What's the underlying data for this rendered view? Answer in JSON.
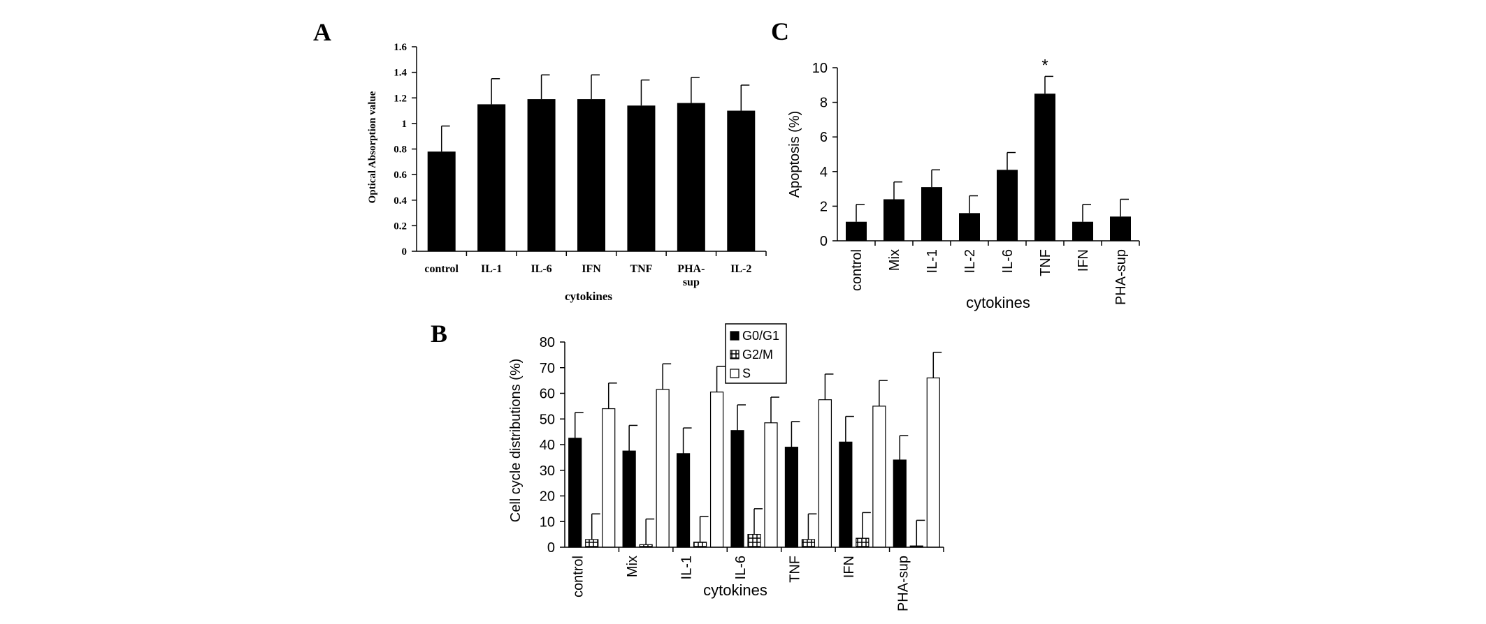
{
  "chart_data": [
    {
      "panel_label": "A",
      "type": "bar",
      "categories": [
        "control",
        "IL-1",
        "IL-6",
        "IFN",
        "TNF",
        "PHA-\nsup",
        "IL-2"
      ],
      "values": [
        0.78,
        1.15,
        1.19,
        1.19,
        1.14,
        1.16,
        1.1
      ],
      "errors": [
        0.2,
        0.2,
        0.19,
        0.19,
        0.2,
        0.2,
        0.2
      ],
      "xlabel": "cytokines",
      "ylabel": "Optical Absorption value",
      "ylim": [
        0,
        1.6
      ],
      "yticks": [
        "0",
        "0.2",
        "0.4",
        "0.6",
        "0.8",
        "1",
        "1.2",
        "1.4",
        "1.6"
      ],
      "grid": false,
      "color": "#000000"
    },
    {
      "panel_label": "C",
      "type": "bar",
      "categories": [
        "control",
        "Mix",
        "IL-1",
        "IL-2",
        "IL-6",
        "TNF",
        "IFN",
        "PHA-sup"
      ],
      "values": [
        1.1,
        2.4,
        3.1,
        1.6,
        4.1,
        8.5,
        1.1,
        1.4
      ],
      "errors": [
        1.0,
        1.0,
        1.0,
        1.0,
        1.0,
        1.0,
        1.0,
        1.0
      ],
      "annotations": [
        {
          "category": "TNF",
          "text": "*"
        }
      ],
      "xlabel": "cytokines",
      "ylabel": "Apoptosis (%)",
      "ylim": [
        0,
        10
      ],
      "yticks": [
        "0",
        "2",
        "4",
        "6",
        "8",
        "10"
      ],
      "grid": false,
      "color": "#000000"
    },
    {
      "panel_label": "B",
      "type": "bar",
      "categories": [
        "control",
        "Mix",
        "IL-1",
        "IL-6",
        "TNF",
        "IFN",
        "PHA-sup"
      ],
      "series": [
        {
          "name": "G0/G1",
          "style": "solid",
          "values": [
            42.5,
            37.5,
            36.5,
            45.5,
            39.0,
            41.0,
            34.0
          ],
          "errors": [
            10,
            10,
            10,
            10,
            10,
            10,
            9.5
          ]
        },
        {
          "name": "G2/M",
          "style": "hatched",
          "values": [
            3.0,
            1.0,
            2.0,
            5.0,
            3.0,
            3.5,
            0.5
          ],
          "errors": [
            10,
            10,
            10,
            10,
            10,
            10,
            10
          ]
        },
        {
          "name": "S",
          "style": "open",
          "values": [
            54.0,
            61.5,
            60.5,
            48.5,
            57.5,
            55.0,
            66.0
          ],
          "errors": [
            10,
            10,
            10,
            10,
            10,
            10,
            10
          ]
        }
      ],
      "xlabel": "cytokines",
      "ylabel": "Cell cycle distributions (%)",
      "ylim": [
        0,
        80
      ],
      "yticks": [
        "0",
        "10",
        "20",
        "30",
        "40",
        "50",
        "60",
        "70",
        "80"
      ],
      "legend_position": "top-center",
      "grid": false
    }
  ]
}
